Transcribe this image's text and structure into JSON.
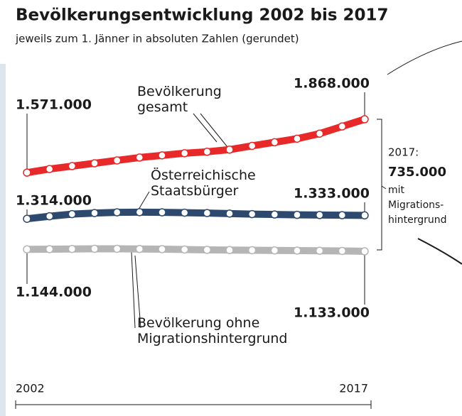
{
  "chart_data": {
    "type": "line",
    "title": "Bevölkerungsentwicklung 2002 bis 2017",
    "subtitle": "jeweils zum 1. Jänner in absoluten Zahlen (gerundet)",
    "categories": [
      "2002",
      null,
      null,
      null,
      null,
      null,
      null,
      null,
      null,
      null,
      null,
      null,
      null,
      null,
      null,
      "2017"
    ],
    "series": [
      {
        "name": "Bevölkerung gesamt",
        "color": "#e8292a",
        "values": [
          1571000,
          1591000,
          1607000,
          1623000,
          1639000,
          1655000,
          1667000,
          1679000,
          1687000,
          1699000,
          1720000,
          1740000,
          1760000,
          1788000,
          1828000,
          1868000
        ],
        "value_labels": [
          "1.571.000",
          null,
          null,
          null,
          null,
          null,
          null,
          null,
          null,
          null,
          null,
          null,
          null,
          null,
          null,
          "1.868.000"
        ]
      },
      {
        "name": "Österreichische Staatsbürger",
        "color": "#2d4a6e",
        "values": [
          1314000,
          1328000,
          1340000,
          1346000,
          1350000,
          1351000,
          1350000,
          1348000,
          1346000,
          1343000,
          1340000,
          1338000,
          1336000,
          1335000,
          1334000,
          1333000
        ],
        "value_labels": [
          "1.314.000",
          null,
          null,
          null,
          null,
          null,
          null,
          null,
          null,
          null,
          null,
          null,
          null,
          null,
          null,
          "1.333.000"
        ]
      },
      {
        "name": "Bevölkerung ohne Migrationshintergrund",
        "color": "#b5b5b5",
        "values": [
          1144000,
          1145000,
          1146000,
          1147000,
          1147000,
          1146000,
          1145000,
          1143000,
          1141000,
          1140000,
          1139000,
          1138000,
          1137000,
          1136000,
          1135000,
          1133000
        ],
        "value_labels": [
          "1.144.000",
          null,
          null,
          null,
          null,
          null,
          null,
          null,
          null,
          null,
          null,
          null,
          null,
          null,
          null,
          "1.133.000"
        ]
      }
    ],
    "annotation": [
      "2017:",
      "735.000",
      "mit",
      "Migrations-",
      "hintergrund"
    ]
  }
}
